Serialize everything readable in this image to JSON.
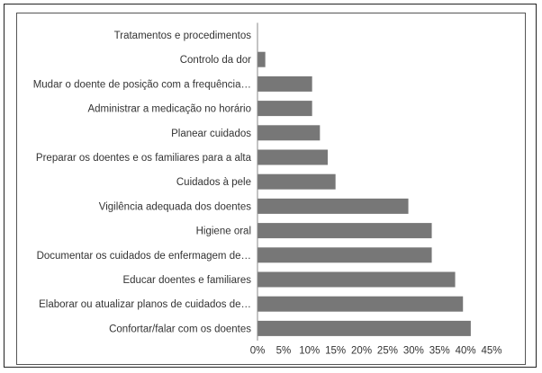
{
  "chart_data": {
    "type": "bar",
    "orientation": "horizontal",
    "categories": [
      "Tratamentos e procedimentos",
      "Controlo da dor",
      "Mudar o doente de posição com a frequência…",
      "Administrar a medicação no horário",
      "Planear cuidados",
      "Preparar os doentes e os familiares para a alta",
      "Cuidados à pele",
      "Vigilência adequada dos doentes",
      "Higiene oral",
      "Documentar os cuidados de enfermagem de…",
      "Educar doentes e familiares",
      "Elaborar ou atualizar planos de cuidados de…",
      "Confortar/falar com os doentes"
    ],
    "values": [
      0,
      1.5,
      10.5,
      10.5,
      12,
      13.5,
      15,
      29,
      33.5,
      33.5,
      38,
      39.5,
      41
    ],
    "xlim": [
      0,
      45
    ],
    "xticks": [
      "0%",
      "5%",
      "10%",
      "15%",
      "20%",
      "25%",
      "30%",
      "35%",
      "40%",
      "45%"
    ],
    "xtick_values": [
      0,
      5,
      10,
      15,
      20,
      25,
      30,
      35,
      40,
      45
    ],
    "grid": false,
    "bar_color": "#777777"
  }
}
